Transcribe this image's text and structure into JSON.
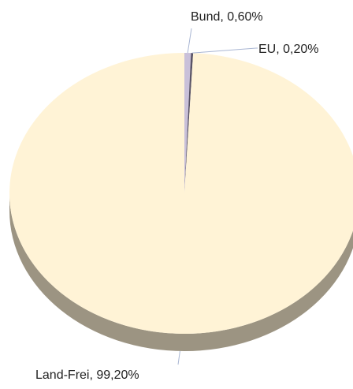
{
  "chart_data": {
    "type": "pie",
    "style": "3d",
    "slices": [
      {
        "label": "Bund",
        "value": 0.6,
        "display": "Bund, 0,60%",
        "color": "#c9c0d9",
        "side_color": "#8a8497"
      },
      {
        "label": "EU",
        "value": 0.2,
        "display": "EU, 0,20%",
        "color": "#5a5467",
        "side_color": "#3e3a48"
      },
      {
        "label": "Land-Frei",
        "value": 99.2,
        "display": "Land-Frei, 99,20%",
        "color": "#fff3d6",
        "side_color": "#9c9482"
      }
    ],
    "leader_color": "#a9b6d3"
  }
}
